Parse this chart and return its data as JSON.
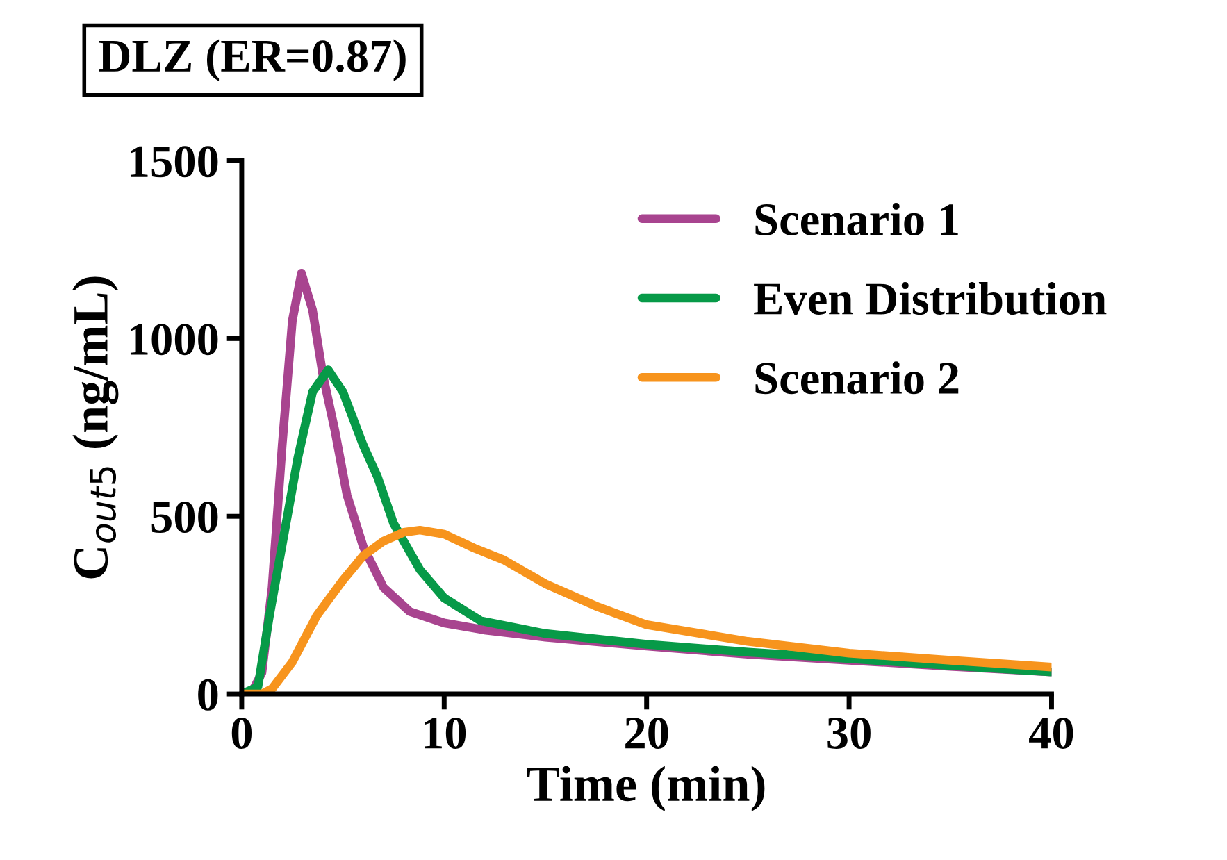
{
  "chart_data": {
    "type": "line",
    "title": "DLZ (ER=0.87)",
    "xlabel": "Time (min)",
    "ylabel": "C$_{out5}$ (ng/mL)",
    "xlim": [
      0,
      40
    ],
    "xticks": [
      0,
      10,
      20,
      30,
      40
    ],
    "ylim": [
      0,
      1500
    ],
    "yticks": [
      0,
      500,
      1000,
      1500
    ],
    "grid": false,
    "legend": "top right",
    "marker": "none",
    "line_style": "solid",
    "series": [
      {
        "name": "Scenario 1",
        "color": "#a8448f",
        "x": [
          0,
          0.5,
          1,
          1.5,
          2,
          2.5,
          2.95,
          3.5,
          4,
          4.6,
          5.2,
          6,
          7,
          8.3,
          10,
          12,
          15,
          20,
          25,
          30,
          35,
          40
        ],
        "values": [
          0,
          5,
          60,
          300,
          700,
          1050,
          1184,
          1080,
          900,
          742,
          560,
          415,
          300,
          232,
          200,
          180,
          160,
          135,
          112,
          95,
          78,
          62
        ]
      },
      {
        "name": "Even Distribution",
        "color": "#079a48",
        "x": [
          0,
          0.8,
          1.37,
          2,
          2.77,
          3.5,
          4.27,
          5,
          6,
          6.7,
          7.5,
          8.8,
          10,
          11.8,
          15,
          20,
          25,
          30,
          35,
          40
        ],
        "values": [
          0,
          20,
          220,
          420,
          664,
          850,
          912,
          850,
          700,
          612,
          480,
          350,
          270,
          206,
          170,
          140,
          118,
          100,
          80,
          62
        ]
      },
      {
        "name": "Scenario 2",
        "color": "#f7941d",
        "x": [
          0,
          1,
          1.5,
          2.5,
          3.7,
          5,
          6,
          7,
          8,
          8.8,
          10,
          11.5,
          12.95,
          15,
          17.6,
          20,
          25,
          30,
          35,
          40
        ],
        "values": [
          0,
          0,
          15,
          90,
          220,
          320,
          389,
          430,
          455,
          461,
          450,
          410,
          377,
          310,
          245,
          195,
          148,
          115,
          95,
          76
        ]
      }
    ]
  }
}
